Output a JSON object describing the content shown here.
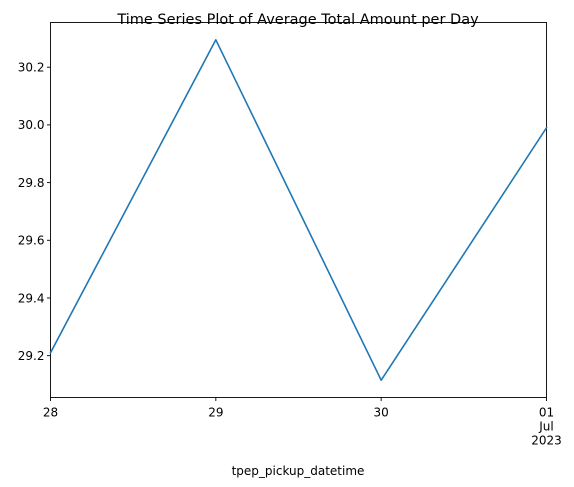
{
  "chart_data": {
    "type": "line",
    "title": "Time Series Plot of Average Total Amount per Day",
    "xlabel": "tpep_pickup_datetime",
    "ylabel": "",
    "x": [
      "2023-06-28",
      "2023-06-29",
      "2023-06-30",
      "2023-07-01"
    ],
    "x_tick_labels": [
      {
        "lines": [
          "28"
        ]
      },
      {
        "lines": [
          "29"
        ]
      },
      {
        "lines": [
          "30"
        ]
      },
      {
        "lines": [
          "01",
          "Jul",
          "2023"
        ]
      }
    ],
    "series": [
      {
        "values": [
          29.21,
          30.295,
          29.115,
          29.99
        ],
        "color": "#1f77b4"
      }
    ],
    "yticks": [
      29.2,
      29.4,
      29.6,
      29.8,
      30.0,
      30.2
    ],
    "ytick_labels": [
      "29.2",
      "29.4",
      "29.6",
      "29.8",
      "30.0",
      "30.2"
    ],
    "ylim": [
      29.055,
      30.355
    ],
    "grid": false,
    "legend": "none"
  }
}
